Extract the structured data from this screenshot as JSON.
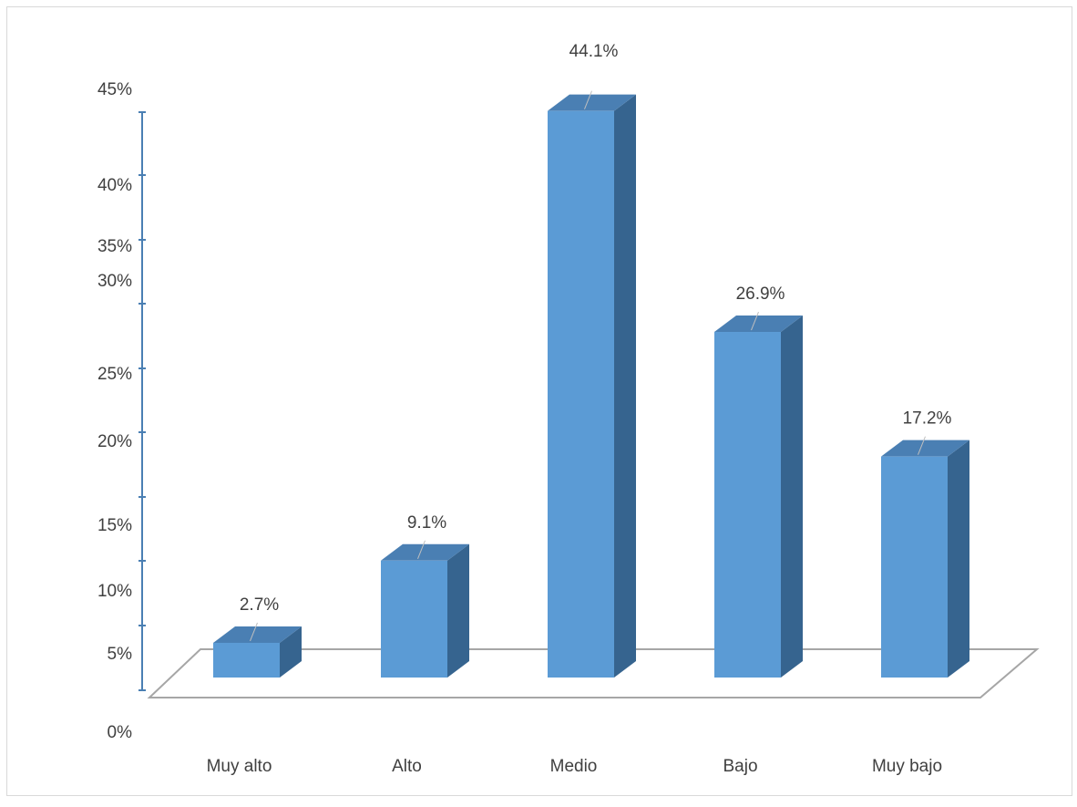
{
  "chart_data": {
    "type": "bar",
    "style": "3d-column",
    "categories": [
      "Muy alto",
      "Alto",
      "Medio",
      "Bajo",
      "Muy bajo"
    ],
    "values": [
      2.7,
      9.1,
      44.1,
      26.9,
      17.2
    ],
    "data_labels": [
      "2.7%",
      "9.1%",
      "44.1%",
      "26.9%",
      "17.2%"
    ],
    "y_tick_labels": [
      "0%",
      "5%",
      "10%",
      "15%",
      "20%",
      "25%",
      "30%",
      "35%",
      "40%",
      "45%"
    ],
    "title": "",
    "xlabel": "",
    "ylabel": "",
    "ylim": [
      0,
      45
    ],
    "grid": false,
    "legend": "none",
    "colors": {
      "bar_front": "#5b9bd5",
      "bar_top": "#4a7fb3",
      "bar_side": "#36648f",
      "floor": "#a6a6a6",
      "axis": "#4a7fb3",
      "text": "#404040"
    }
  }
}
